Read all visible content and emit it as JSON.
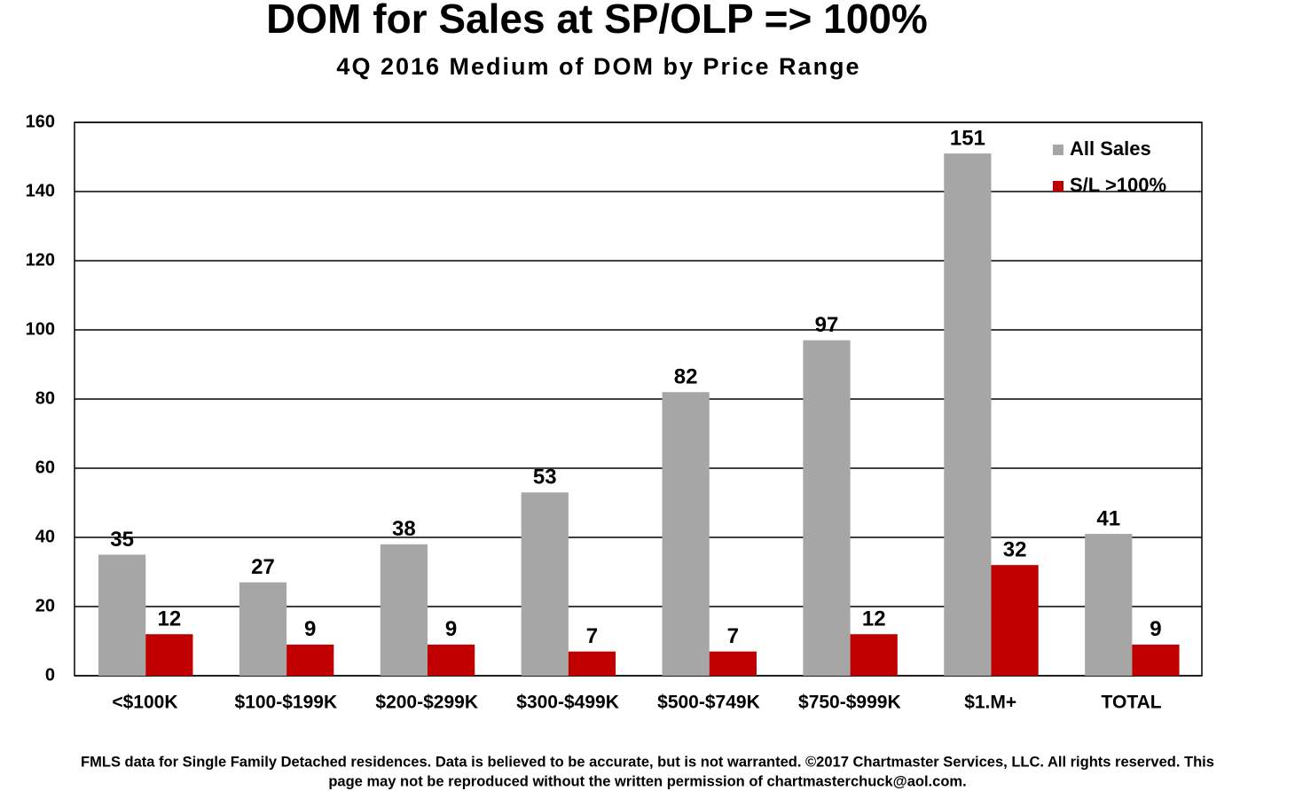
{
  "chart_data": {
    "type": "bar",
    "title": "DOM for Sales at SP/OLP => 100%",
    "subtitle": "4Q 2016 Medium of DOM by Price Range",
    "categories": [
      "<$100K",
      "$100-$199K",
      "$200-$299K",
      "$300-$499K",
      "$500-$749K",
      "$750-$999K",
      "$1.M+",
      "TOTAL"
    ],
    "series": [
      {
        "name": "All Sales",
        "color": "#a6a6a6",
        "values": [
          35,
          27,
          38,
          53,
          82,
          97,
          151,
          41
        ]
      },
      {
        "name": "S/L >100%",
        "color": "#c00000",
        "values": [
          12,
          9,
          9,
          7,
          7,
          12,
          32,
          9
        ]
      }
    ],
    "ylim": [
      0,
      160
    ],
    "yticks": [
      0,
      20,
      40,
      60,
      80,
      100,
      120,
      140,
      160
    ],
    "grid": true,
    "legend": "top-right",
    "footnote": [
      "FMLS data for Single Family Detached residences.  Data is believed to be accurate, but is not warranted.  ©2017  Chartmaster Services, LLC.  All rights reserved. This",
      "page may not be reproduced without the written permission of chartmasterchuck@aol.com."
    ]
  }
}
